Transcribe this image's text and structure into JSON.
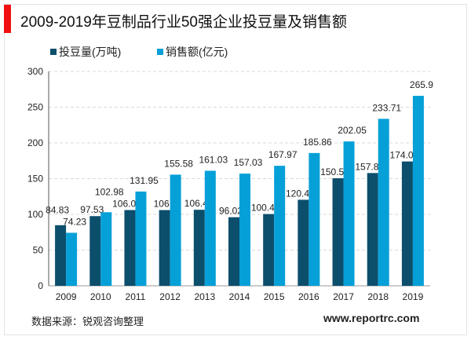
{
  "title": "2009-2019年豆制品行业50强企业投豆量及销售额",
  "footer": {
    "source": "数据来源：锐观咨询整理",
    "website": "www.reportrc.com"
  },
  "colors": {
    "series1": "#0b4f6c",
    "series2": "#06a0d8",
    "accent": "#f01010"
  },
  "chart_data": {
    "type": "bar",
    "title": "2009-2019年豆制品行业50强企业投豆量及销售额",
    "categories": [
      "2009",
      "2010",
      "2011",
      "2012",
      "2013",
      "2014",
      "2015",
      "2016",
      "2017",
      "2018",
      "2019"
    ],
    "series": [
      {
        "name": "投豆量(万吨)",
        "values": [
          84.83,
          97.53,
          106.04,
          106,
          106.4,
          96.02,
          100.44,
          120.43,
          150.59,
          157.86,
          174.04
        ]
      },
      {
        "name": "销售额(亿元)",
        "values": [
          74.23,
          102.98,
          131.95,
          155.58,
          161.03,
          157.03,
          167.97,
          185.86,
          202.05,
          233.71,
          265.9
        ]
      }
    ],
    "ylim": [
      0,
      300
    ],
    "yticks": [
      "0",
      "50",
      "100",
      "150",
      "200",
      "250",
      "300"
    ],
    "grid": true,
    "legend": "top-left"
  }
}
